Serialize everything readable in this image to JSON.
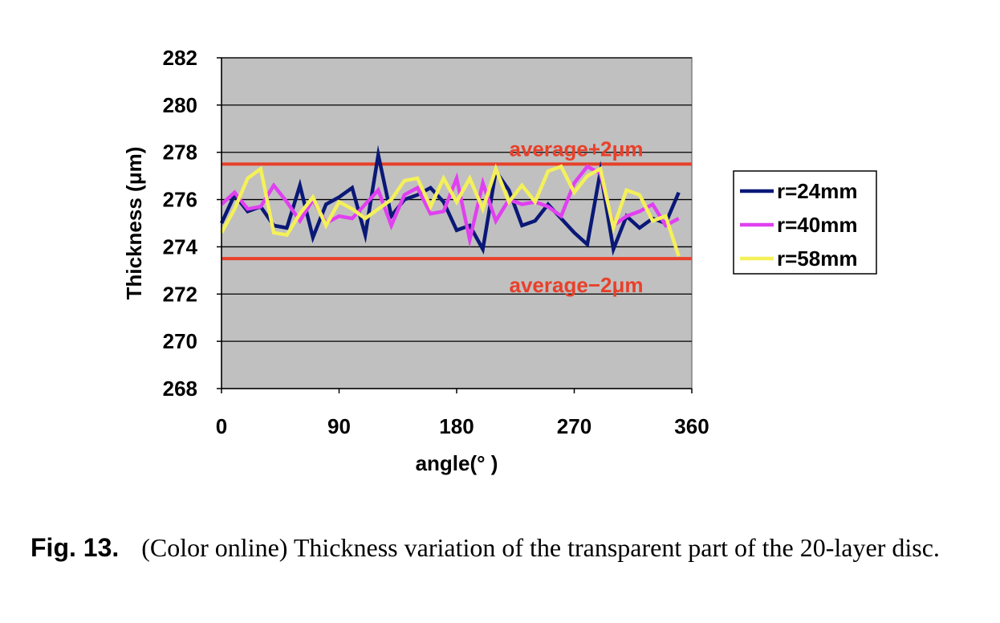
{
  "chart_data": {
    "type": "line",
    "xlabel": "angle(° )",
    "ylabel": "Thickness (μm)",
    "xlim": [
      0,
      360
    ],
    "ylim": [
      268,
      282
    ],
    "x_ticks": [
      "0",
      "90",
      "180",
      "270",
      "360"
    ],
    "y_ticks": [
      "268",
      "270",
      "272",
      "274",
      "276",
      "278",
      "280",
      "282"
    ],
    "grid": "horizontal",
    "legend_position": "right",
    "reference_lines": [
      {
        "label": "average+2μm",
        "y": 277.5,
        "color": "#e8402a"
      },
      {
        "label": "average−2μm",
        "y": 273.5,
        "color": "#e8402a"
      }
    ],
    "x": [
      0,
      10,
      20,
      30,
      40,
      50,
      60,
      70,
      80,
      90,
      100,
      110,
      120,
      130,
      140,
      150,
      160,
      170,
      180,
      190,
      200,
      210,
      220,
      230,
      240,
      250,
      260,
      270,
      280,
      290,
      300,
      310,
      320,
      330,
      340,
      350
    ],
    "series": [
      {
        "name": "r=24mm",
        "color": "#0a1877",
        "values": [
          275.0,
          276.2,
          275.5,
          275.7,
          274.9,
          274.8,
          276.6,
          274.4,
          275.8,
          276.1,
          276.5,
          274.5,
          277.9,
          275.3,
          276.0,
          276.2,
          276.5,
          275.9,
          274.7,
          274.9,
          273.9,
          277.2,
          276.4,
          274.9,
          275.1,
          275.8,
          275.2,
          274.6,
          274.1,
          277.2,
          273.9,
          275.3,
          274.8,
          275.2,
          275.0,
          276.3
        ]
      },
      {
        "name": "r=40mm",
        "color": "#e040f0",
        "values": [
          275.8,
          276.3,
          275.6,
          275.7,
          276.6,
          275.9,
          275.1,
          276.0,
          275.0,
          275.3,
          275.2,
          275.8,
          276.4,
          274.9,
          276.2,
          276.5,
          275.4,
          275.5,
          276.9,
          274.3,
          276.7,
          275.1,
          276.0,
          275.8,
          275.9,
          275.7,
          275.3,
          276.7,
          277.4,
          277.1,
          274.9,
          275.3,
          275.5,
          275.8,
          274.9,
          275.2
        ]
      },
      {
        "name": "r=58mm",
        "color": "#f4f05a",
        "values": [
          274.6,
          275.6,
          276.9,
          277.3,
          274.6,
          274.5,
          275.4,
          276.1,
          274.9,
          275.9,
          275.6,
          275.2,
          275.6,
          276.0,
          276.8,
          276.9,
          275.7,
          276.9,
          275.9,
          276.9,
          275.6,
          277.3,
          275.9,
          276.6,
          275.9,
          277.2,
          277.4,
          276.3,
          277.0,
          277.3,
          274.8,
          276.4,
          276.2,
          275.1,
          275.3,
          273.6
        ]
      }
    ]
  },
  "caption": {
    "label": "Fig. 13.",
    "text": "(Color online) Thickness variation of the transparent part of the 20-layer disc."
  }
}
